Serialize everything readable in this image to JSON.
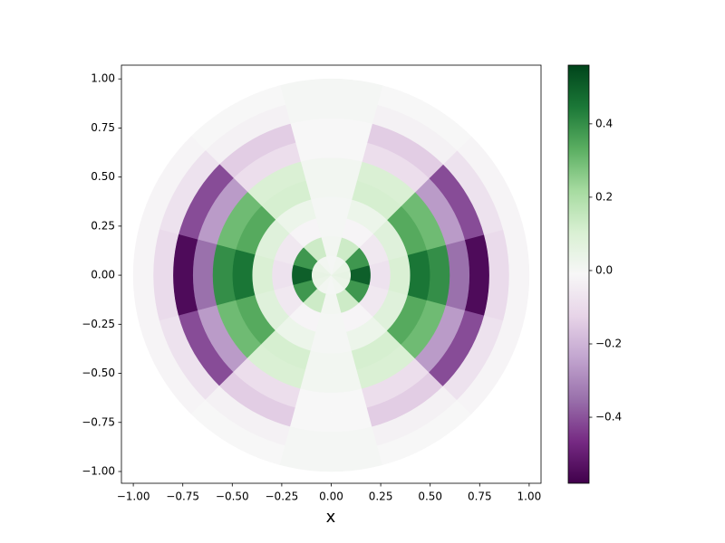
{
  "chart_data": {
    "type": "polar-heatmap",
    "xlabel": "x",
    "r_edges": [
      0,
      0.1,
      0.2,
      0.3,
      0.4,
      0.5,
      0.6,
      0.7,
      0.8,
      0.9,
      1.0
    ],
    "theta_edges": [
      -15,
      15,
      45,
      75,
      105,
      135,
      165,
      195,
      225,
      255,
      285,
      315,
      345
    ],
    "values": [
      [
        0.05,
        0.04,
        0.01,
        0,
        0.01,
        0.04,
        0.05,
        0.04,
        0.01,
        0,
        0.01,
        0.04
      ],
      [
        0.5,
        0.38,
        0.13,
        0.01,
        0.13,
        0.38,
        0.5,
        0.38,
        0.13,
        0.01,
        0.13,
        0.38
      ],
      [
        -0.08,
        -0.06,
        -0.02,
        0,
        -0.02,
        -0.06,
        -0.08,
        -0.06,
        -0.02,
        0,
        -0.02,
        -0.06
      ],
      [
        0.1,
        0.08,
        0.03,
        0,
        0.03,
        0.08,
        0.1,
        0.08,
        0.03,
        0,
        0.03,
        0.08
      ],
      [
        0.45,
        0.34,
        0.11,
        0.01,
        0.11,
        0.34,
        0.45,
        0.34,
        0.11,
        0.01,
        0.11,
        0.34
      ],
      [
        0.4,
        0.3,
        0.1,
        0.01,
        0.1,
        0.3,
        0.4,
        0.3,
        0.1,
        0.01,
        0.1,
        0.3
      ],
      [
        -0.35,
        -0.26,
        -0.09,
        -0.01,
        -0.09,
        -0.26,
        -0.35,
        -0.26,
        -0.09,
        -0.01,
        -0.09,
        -0.26
      ],
      [
        -0.55,
        -0.41,
        -0.14,
        -0.01,
        -0.14,
        -0.41,
        -0.55,
        -0.41,
        -0.14,
        -0.01,
        -0.14,
        -0.41
      ],
      [
        -0.1,
        -0.08,
        -0.03,
        0,
        -0.03,
        -0.08,
        -0.1,
        -0.08,
        -0.03,
        0,
        -0.03,
        -0.08
      ],
      [
        -0.02,
        -0.02,
        -0.01,
        0,
        -0.01,
        -0.02,
        -0.02,
        -0.02,
        -0.01,
        0,
        -0.01,
        -0.02
      ]
    ],
    "xlim": [
      -1.06,
      1.06
    ],
    "ylim": [
      -1.06,
      1.07
    ],
    "xticks": [
      {
        "value": -1,
        "label": "−1.00"
      },
      {
        "value": -0.75,
        "label": "−0.75"
      },
      {
        "value": -0.5,
        "label": "−0.50"
      },
      {
        "value": -0.25,
        "label": "−0.25"
      },
      {
        "value": 0,
        "label": "0.00"
      },
      {
        "value": 0.25,
        "label": "0.25"
      },
      {
        "value": 0.5,
        "label": "0.50"
      },
      {
        "value": 0.75,
        "label": "0.75"
      },
      {
        "value": 1,
        "label": "1.00"
      }
    ],
    "yticks": [
      {
        "value": -1,
        "label": "−1.00"
      },
      {
        "value": -0.75,
        "label": "−0.75"
      },
      {
        "value": -0.5,
        "label": "−0.50"
      },
      {
        "value": -0.25,
        "label": "−0.25"
      },
      {
        "value": 0,
        "label": "0.00"
      },
      {
        "value": 0.25,
        "label": "0.25"
      },
      {
        "value": 0.5,
        "label": "0.50"
      },
      {
        "value": 0.75,
        "label": "0.75"
      },
      {
        "value": 1,
        "label": "1.00"
      }
    ],
    "clim": [
      -0.58,
      0.56
    ],
    "cticks": [
      {
        "value": -0.4,
        "label": "−0.4"
      },
      {
        "value": -0.2,
        "label": "−0.2"
      },
      {
        "value": 0,
        "label": "0.0"
      },
      0.2,
      0.4
    ],
    "colormap": [
      "#40004b",
      "#762a83",
      "#9970ab",
      "#c2a5cf",
      "#e7d4e8",
      "#f7f7f7",
      "#d9f0d3",
      "#a6dba0",
      "#5aae61",
      "#1b7837",
      "#00441b"
    ]
  }
}
